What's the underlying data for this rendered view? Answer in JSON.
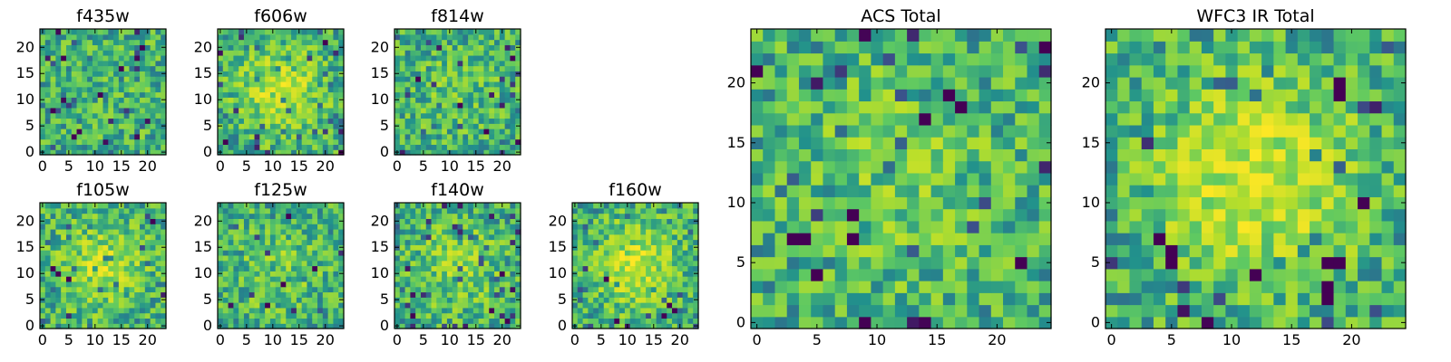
{
  "chart_data": {
    "type": "heatmap",
    "colormap": [
      "#440154",
      "#3b528b",
      "#21918c",
      "#5ec962",
      "#b5de2b",
      "#fde725"
    ],
    "panels": [
      {
        "title": "f435w",
        "grid": 24,
        "x_ticks": [
          0,
          5,
          10,
          15,
          20
        ],
        "y_ticks": [
          0,
          5,
          10,
          15,
          20
        ],
        "x_tick_labels": [
          "0",
          "5",
          "10",
          "15",
          "20"
        ],
        "y_tick_labels": [
          "0",
          "5",
          "10",
          "15",
          "20"
        ],
        "seed": 11,
        "center_boost": 0.0,
        "dark_cells": [
          [
            2,
            8
          ],
          [
            6,
            3
          ],
          [
            11,
            11
          ],
          [
            15,
            16
          ],
          [
            19,
            20
          ],
          [
            4,
            18
          ]
        ]
      },
      {
        "title": "f606w",
        "grid": 24,
        "x_ticks": [
          0,
          5,
          10,
          15,
          20
        ],
        "y_ticks": [
          0,
          5,
          10,
          15,
          20
        ],
        "x_tick_labels": [
          "0",
          "5",
          "10",
          "15",
          "20"
        ],
        "y_tick_labels": [
          "0",
          "5",
          "10",
          "15",
          "20"
        ],
        "seed": 23,
        "center_boost": 0.35,
        "dark_cells": [
          [
            1,
            2
          ],
          [
            20,
            21
          ],
          [
            23,
            0
          ]
        ]
      },
      {
        "title": "f814w",
        "grid": 24,
        "x_ticks": [
          0,
          5,
          10,
          15,
          20
        ],
        "y_ticks": [
          0,
          5,
          10,
          15,
          20
        ],
        "x_tick_labels": [
          "0",
          "5",
          "10",
          "15",
          "20"
        ],
        "y_tick_labels": [
          "0",
          "5",
          "10",
          "15",
          "20"
        ],
        "seed": 37,
        "center_boost": 0.1,
        "dark_cells": [
          [
            4,
            14
          ],
          [
            12,
            9
          ],
          [
            17,
            4
          ],
          [
            22,
            18
          ]
        ]
      },
      {
        "title": "f105w",
        "grid": 24,
        "x_ticks": [
          0,
          5,
          10,
          15,
          20
        ],
        "y_ticks": [
          0,
          5,
          10,
          15,
          20
        ],
        "x_tick_labels": [
          "0",
          "5",
          "10",
          "15",
          "20"
        ],
        "y_tick_labels": [
          "0",
          "5",
          "10",
          "15",
          "20"
        ],
        "seed": 41,
        "center_boost": 0.3,
        "dark_cells": [
          [
            2,
            11
          ],
          [
            3,
            10
          ],
          [
            5,
            9
          ],
          [
            21,
            20
          ]
        ]
      },
      {
        "title": "f125w",
        "grid": 24,
        "x_ticks": [
          0,
          5,
          10,
          15,
          20
        ],
        "y_ticks": [
          0,
          5,
          10,
          15,
          20
        ],
        "x_tick_labels": [
          "0",
          "5",
          "10",
          "15",
          "20"
        ],
        "y_tick_labels": [
          "0",
          "5",
          "10",
          "15",
          "20"
        ],
        "seed": 53,
        "center_boost": 0.15,
        "dark_cells": [
          [
            12,
            8
          ],
          [
            13,
            21
          ],
          [
            9,
            4
          ],
          [
            18,
            11
          ]
        ]
      },
      {
        "title": "f140w",
        "grid": 24,
        "x_ticks": [
          0,
          5,
          10,
          15,
          20
        ],
        "y_ticks": [
          0,
          5,
          10,
          15,
          20
        ],
        "x_tick_labels": [
          "0",
          "5",
          "10",
          "15",
          "20"
        ],
        "y_tick_labels": [
          "0",
          "5",
          "10",
          "15",
          "20"
        ],
        "seed": 67,
        "center_boost": 0.2,
        "dark_cells": [
          [
            20,
            10
          ],
          [
            3,
            2
          ],
          [
            18,
            3
          ],
          [
            21,
            1
          ]
        ]
      },
      {
        "title": "f160w",
        "grid": 24,
        "x_ticks": [
          0,
          5,
          10,
          15,
          20
        ],
        "y_ticks": [
          0,
          5,
          10,
          15,
          20
        ],
        "x_tick_labels": [
          "0",
          "5",
          "10",
          "15",
          "20"
        ],
        "y_tick_labels": [
          "0",
          "5",
          "10",
          "15",
          "20"
        ],
        "seed": 79,
        "center_boost": 0.35,
        "dark_cells": [
          [
            18,
            4
          ],
          [
            19,
            3
          ],
          [
            17,
            2
          ],
          [
            8,
            1
          ],
          [
            6,
            9
          ]
        ]
      },
      {
        "title": "ACS Total",
        "grid": 25,
        "x_ticks": [
          0,
          5,
          10,
          15,
          20
        ],
        "y_ticks": [
          0,
          5,
          10,
          15,
          20
        ],
        "x_tick_labels": [
          "0",
          "5",
          "10",
          "15",
          "20"
        ],
        "y_tick_labels": [
          "0",
          "5",
          "10",
          "15",
          "20"
        ],
        "seed": 97,
        "center_boost": 0.15,
        "dark_cells": [
          [
            0,
            21
          ],
          [
            8,
            9
          ],
          [
            3,
            7
          ],
          [
            4,
            7
          ],
          [
            8,
            7
          ],
          [
            14,
            17
          ],
          [
            16,
            19
          ],
          [
            22,
            5
          ],
          [
            9,
            0
          ],
          [
            24,
            23
          ],
          [
            17,
            18
          ],
          [
            5,
            4
          ]
        ]
      },
      {
        "title": "WFC3 IR Total",
        "grid": 25,
        "x_ticks": [
          0,
          5,
          10,
          15,
          20
        ],
        "y_ticks": [
          0,
          5,
          10,
          15,
          20
        ],
        "x_tick_labels": [
          "0",
          "5",
          "10",
          "15",
          "20"
        ],
        "y_tick_labels": [
          "0",
          "5",
          "10",
          "15",
          "20"
        ],
        "seed": 113,
        "center_boost": 0.4,
        "dark_cells": [
          [
            5,
            6
          ],
          [
            5,
            5
          ],
          [
            19,
            5
          ],
          [
            18,
            5
          ],
          [
            18,
            3
          ],
          [
            18,
            2
          ],
          [
            12,
            4
          ],
          [
            19,
            19
          ],
          [
            19,
            20
          ],
          [
            21,
            10
          ],
          [
            4,
            7
          ]
        ]
      }
    ]
  }
}
